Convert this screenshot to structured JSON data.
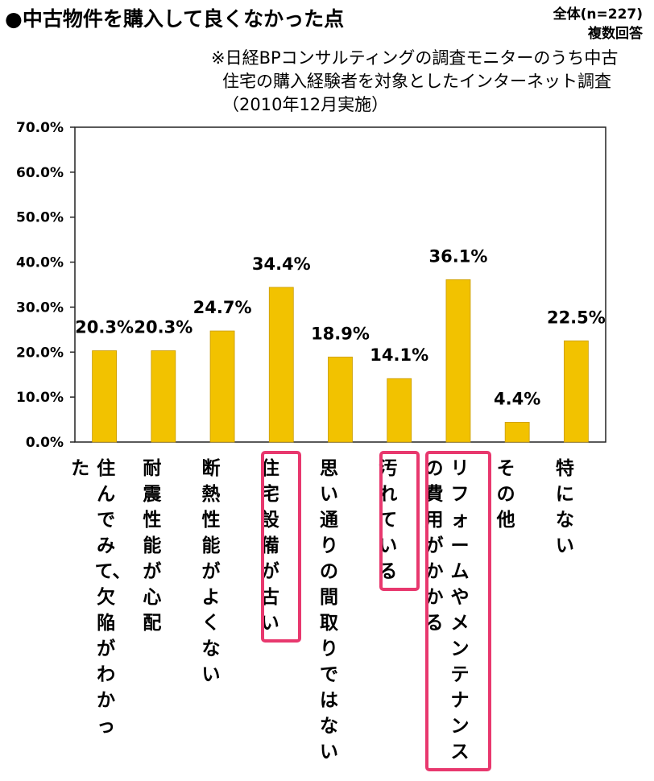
{
  "header": {
    "title": "●中古物件を購入して良くなかった点",
    "sample": "全体(n=227)",
    "answer_type": "複数回答",
    "note_line1": "※日経BPコンサルティングの調査モニターのうち中古",
    "note_line2": "住宅の購入経験者を対象としたインターネット調査",
    "note_line3": "（2010年12月実施）"
  },
  "colors": {
    "bar": "#f2c200",
    "bar_edge": "#c99a00",
    "highlight": "#e8386e"
  },
  "chart_data": {
    "type": "bar",
    "categories": [
      "住んでみて、欠陥がわかった",
      "耐震性能が心配",
      "断熱性能がよくない",
      "住宅設備が古い",
      "思い通りの間取りではない",
      "汚れている",
      "リフォームやメンテナンスの費用がかかる",
      "その他",
      "特にない"
    ],
    "values": [
      20.3,
      20.3,
      24.7,
      34.4,
      18.9,
      14.1,
      36.1,
      4.4,
      22.5
    ],
    "value_labels": [
      "20.3%",
      "20.3%",
      "24.7%",
      "34.4%",
      "18.9%",
      "14.1%",
      "36.1%",
      "4.4%",
      "22.5%"
    ],
    "ylim": [
      0,
      70
    ],
    "yticks": [
      "0.0%",
      "10.0%",
      "20.0%",
      "30.0%",
      "40.0%",
      "50.0%",
      "60.0%",
      "70.0%"
    ],
    "highlighted_categories": [
      "住宅設備が古い",
      "汚れている",
      "リフォームやメンテナンスの費用がかかる"
    ],
    "grid": false
  }
}
